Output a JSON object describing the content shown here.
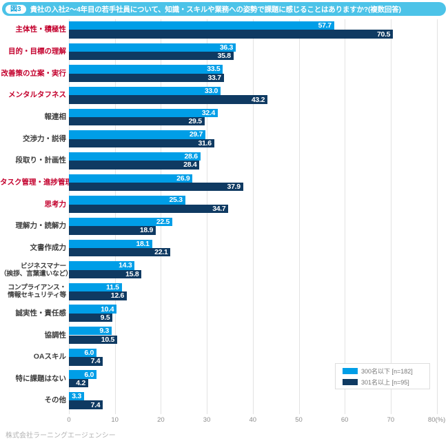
{
  "header": {
    "badge": "図3",
    "title": "貴社の入社2〜4年目の若手社員について、知識・スキルや業務への姿勢で課題に感じることはありますか?(複数回答)"
  },
  "colors": {
    "header_bg": "#4cc3e8",
    "badge_text": "#17a5dc",
    "series_light_blue": "#009ee7",
    "series_dark_navy": "#0f3a62",
    "highlight_label_red": "#c3002d",
    "label_gray": "#3c3c3c",
    "grid_gray": "#e2e2e2"
  },
  "chart_data": {
    "type": "bar",
    "orientation": "horizontal",
    "title": "貴社の入社2〜4年目の若手社員について、知識・スキルや業務への姿勢で課題に感じることはありますか?(複数回答)",
    "xlabel": "(%)",
    "ylabel": "",
    "xlim": [
      0,
      80
    ],
    "grid": true,
    "legend_position": "bottom-right",
    "x_ticks": [
      0,
      10,
      20,
      30,
      40,
      50,
      60,
      70,
      80
    ],
    "x_tick_labels": [
      "0",
      "10",
      "20",
      "30",
      "40",
      "50",
      "60",
      "70",
      "80(%)"
    ],
    "categories": [
      {
        "lines": [
          "主体性・積極性"
        ],
        "highlight": true
      },
      {
        "lines": [
          "目的・目標の理解"
        ],
        "highlight": true
      },
      {
        "lines": [
          "改善策の立案・実行"
        ],
        "highlight": true
      },
      {
        "lines": [
          "メンタルタフネス"
        ],
        "highlight": true
      },
      {
        "lines": [
          "報連相"
        ],
        "highlight": false
      },
      {
        "lines": [
          "交渉力・説得"
        ],
        "highlight": false
      },
      {
        "lines": [
          "段取り・計画性"
        ],
        "highlight": false
      },
      {
        "lines": [
          "タスク管理・進捗管理"
        ],
        "highlight": true
      },
      {
        "lines": [
          "思考力"
        ],
        "highlight": true
      },
      {
        "lines": [
          "理解力・読解力"
        ],
        "highlight": false
      },
      {
        "lines": [
          "文書作成力"
        ],
        "highlight": false
      },
      {
        "lines": [
          "ビジネスマナー",
          "（挨拶、言葉遣いなど）"
        ],
        "highlight": false
      },
      {
        "lines": [
          "コンプライアンス・",
          "情報セキュリティ等"
        ],
        "highlight": false
      },
      {
        "lines": [
          "誠実性・責任感"
        ],
        "highlight": false
      },
      {
        "lines": [
          "協調性"
        ],
        "highlight": false
      },
      {
        "lines": [
          "OAスキル"
        ],
        "highlight": false
      },
      {
        "lines": [
          "特に課題はない"
        ],
        "highlight": false
      },
      {
        "lines": [
          "その他"
        ],
        "highlight": false
      }
    ],
    "series": [
      {
        "name": "300名以下 [n=182]",
        "color": "#009ee7",
        "values": [
          57.7,
          36.3,
          33.5,
          33.0,
          32.4,
          29.7,
          28.6,
          26.9,
          25.3,
          22.5,
          18.1,
          14.3,
          11.5,
          10.4,
          9.3,
          6.0,
          6.0,
          3.3
        ]
      },
      {
        "name": "301名以上 [n=95]",
        "color": "#0f3a62",
        "values": [
          70.5,
          35.8,
          33.7,
          43.2,
          29.5,
          31.6,
          28.4,
          37.9,
          34.7,
          18.9,
          22.1,
          15.8,
          12.6,
          9.5,
          10.5,
          7.4,
          4.2,
          7.4
        ]
      }
    ]
  },
  "footer": {
    "credit": "株式会社ラーニングエージェンシー"
  }
}
